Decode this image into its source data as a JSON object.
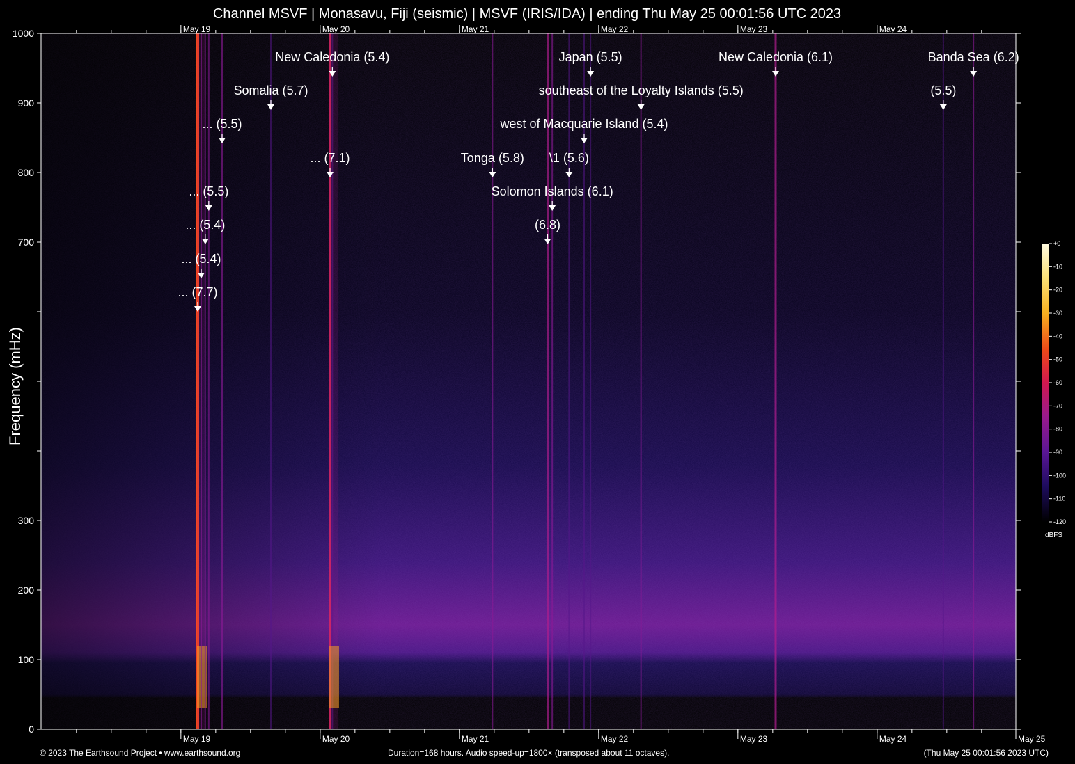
{
  "title": "Channel MSVF | Monasavu, Fiji (seismic) | MSVF (IRIS/IDA) | ending Thu May 25 00:01:56 UTC 2023",
  "footer": {
    "copyright": "© 2023 The Earthsound Project • www.earthsound.org",
    "duration": "Duration=168 hours. Audio speed-up=1800× (transposed about 11 octaves).",
    "timestamp": "(Thu May 25 00:01:56 2023 UTC)"
  },
  "colors": {
    "background": "#000000",
    "axis": "#ffffff",
    "colormap": [
      "#000000",
      "#1a0a5a",
      "#5a1696",
      "#b0208a",
      "#e2284a",
      "#f07010",
      "#f8c830",
      "#fffbe0"
    ]
  },
  "chart_data": {
    "type": "heatmap",
    "title": "Channel MSVF | Monasavu, Fiji (seismic) | MSVF (IRIS/IDA) | ending Thu May 25 00:01:56 UTC 2023",
    "xlabel": "",
    "ylabel": "Frequency (mHz)",
    "x_unit": "hours",
    "xlim": [
      0,
      168
    ],
    "ylim": [
      0,
      1000
    ],
    "y_ticks": [
      {
        "value": 0,
        "label": "0"
      },
      {
        "value": 100,
        "label": "100"
      },
      {
        "value": 200,
        "label": "200"
      },
      {
        "value": 300,
        "label": "300"
      },
      {
        "value": 400,
        "label": ""
      },
      {
        "value": 500,
        "label": ""
      },
      {
        "value": 600,
        "label": ""
      },
      {
        "value": 700,
        "label": "700"
      },
      {
        "value": 800,
        "label": "800"
      },
      {
        "value": 900,
        "label": "900"
      },
      {
        "value": 1000,
        "label": "1000"
      }
    ],
    "x_ticks": [
      {
        "hour": 24.1,
        "label": "May 19"
      },
      {
        "hour": 48.1,
        "label": "May 20"
      },
      {
        "hour": 72.1,
        "label": "May 21"
      },
      {
        "hour": 96.1,
        "label": "May 22"
      },
      {
        "hour": 120.1,
        "label": "May 23"
      },
      {
        "hour": 144.1,
        "label": "May 24"
      },
      {
        "hour": 168,
        "label": "May 25"
      }
    ],
    "colorbar": {
      "label": "dBFS",
      "range": [
        -120,
        0
      ],
      "ticks": [
        "+0",
        "-10",
        "-20",
        "-30",
        "-40",
        "-50",
        "-60",
        "-70",
        "-80",
        "-90",
        "-100",
        "-110",
        "-120"
      ]
    },
    "events": [
      {
        "label": "... (7.7)",
        "hour": 27.0,
        "marker_freq": 600,
        "intensity": 1.0
      },
      {
        "label": "... (5.4)",
        "hour": 27.6,
        "marker_freq": 648,
        "intensity": 0.4
      },
      {
        "label": "... (5.4)",
        "hour": 28.3,
        "marker_freq": 697,
        "intensity": 0.4
      },
      {
        "label": "... (5.5)",
        "hour": 28.9,
        "marker_freq": 745,
        "intensity": 0.4
      },
      {
        "label": "... (5.5)",
        "hour": 31.2,
        "marker_freq": 842,
        "intensity": 0.45
      },
      {
        "label": "Somalia (5.7)",
        "hour": 39.6,
        "marker_freq": 890,
        "intensity": 0.3
      },
      {
        "label": "New Caledonia (5.4)",
        "hour": 50.2,
        "marker_freq": 938,
        "intensity": 0.35
      },
      {
        "label": "... (7.1)",
        "hour": 49.8,
        "marker_freq": 793,
        "intensity": 0.85
      },
      {
        "label": "Tonga (5.8)",
        "hour": 77.8,
        "marker_freq": 793,
        "intensity": 0.4
      },
      {
        "label": "Solomon Islands (6.1)",
        "hour": 88.1,
        "marker_freq": 745,
        "intensity": 0.45
      },
      {
        "label": "(6.8)",
        "hour": 87.3,
        "marker_freq": 697,
        "intensity": 0.55
      },
      {
        "label": "\\1 (5.6)",
        "hour": 91.0,
        "marker_freq": 793,
        "intensity": 0.3
      },
      {
        "label": "west of Macquarie Island (5.4)",
        "hour": 93.6,
        "marker_freq": 842,
        "intensity": 0.3
      },
      {
        "label": "southeast of the Loyalty Islands (5.5)",
        "hour": 103.4,
        "marker_freq": 890,
        "intensity": 0.4
      },
      {
        "label": "Japan (5.5)",
        "hour": 94.7,
        "marker_freq": 938,
        "intensity": 0.3
      },
      {
        "label": "New Caledonia (6.1)",
        "hour": 126.6,
        "marker_freq": 938,
        "intensity": 0.6
      },
      {
        "label": "(5.5)",
        "hour": 155.5,
        "marker_freq": 890,
        "intensity": 0.3
      },
      {
        "label": "Banda Sea (6.2)",
        "hour": 160.7,
        "marker_freq": 938,
        "intensity": 0.45
      }
    ]
  }
}
